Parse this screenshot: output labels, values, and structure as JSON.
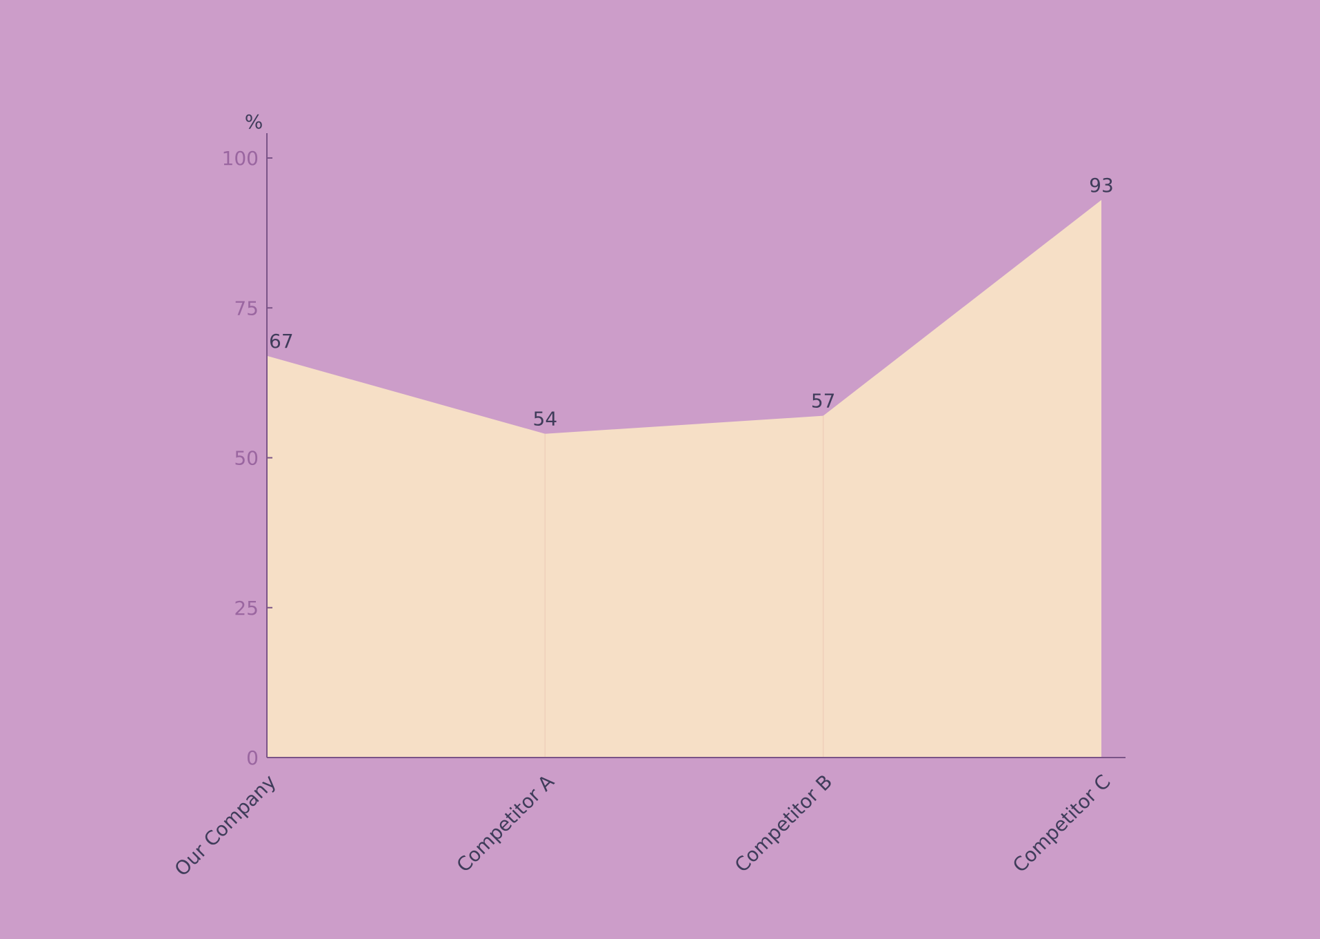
{
  "chart_data": {
    "type": "area",
    "categories": [
      "Our Company",
      "Competitor A",
      "Competitor B",
      "Competitor C"
    ],
    "series": [
      {
        "values": [
          67,
          54,
          57,
          93
        ]
      }
    ],
    "data_labels": [
      "67",
      "54",
      "57",
      "93"
    ],
    "ylabel": "%",
    "ylim": [
      0,
      100
    ],
    "yticks": [
      0,
      25,
      50,
      75,
      100
    ],
    "grid": false,
    "legend": "none",
    "colors": {
      "background": "#cc9dc9",
      "area_fill": "#f6dfc6",
      "axis": "#7a5387",
      "tick_text": "#9a66a0",
      "label_text": "#3f3c5a"
    }
  }
}
